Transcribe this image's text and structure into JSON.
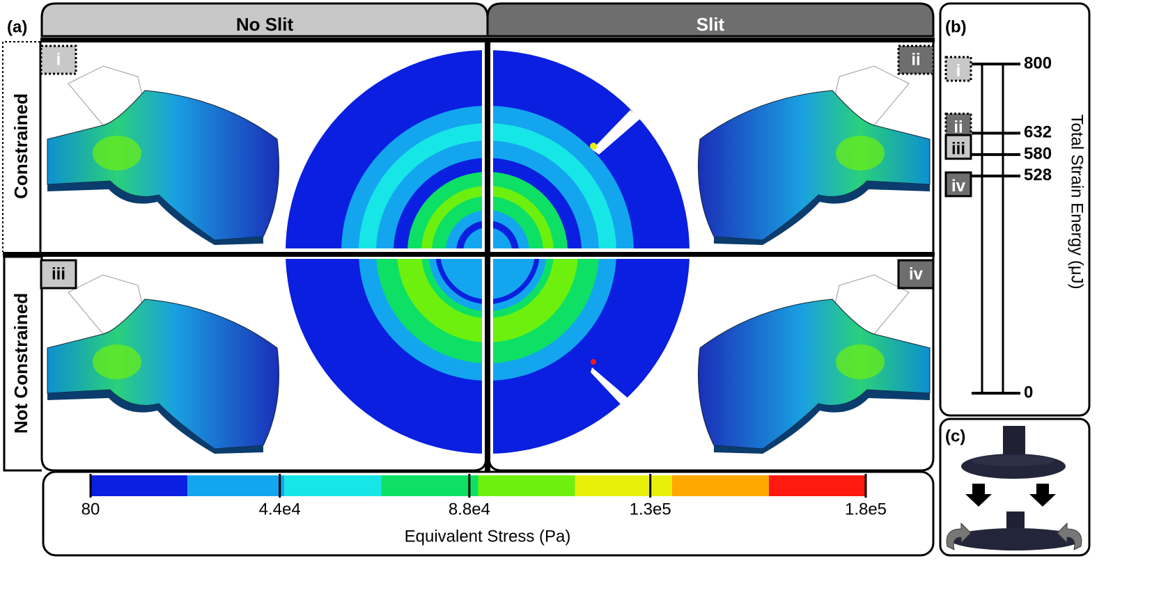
{
  "figure": {
    "panel_a": {
      "label": "(a)",
      "columns": [
        "No Slit",
        "Slit"
      ],
      "rows": [
        "Constrained",
        "Not Constrained"
      ],
      "cases": [
        "i",
        "ii",
        "iii",
        "iv"
      ]
    },
    "colorbar": {
      "title": "Equivalent Stress (Pa)",
      "lim": [
        80,
        180000
      ],
      "colors": [
        "#0a1fe0",
        "#13a6ee",
        "#17e6e6",
        "#0de064",
        "#6ef00e",
        "#e8f00a",
        "#ffa800",
        "#ff1a10"
      ],
      "ticks": [
        {
          "value": 80,
          "label": "80"
        },
        {
          "value": 44000,
          "label": "4.4e4"
        },
        {
          "value": 88000,
          "label": "8.8e4"
        },
        {
          "value": 130000,
          "label": "1.3e5"
        },
        {
          "value": 180000,
          "label": "1.8e5"
        }
      ]
    },
    "panel_b": {
      "label": "(b)",
      "axis_title": "Total Strain Energy (μJ)",
      "ylim": [
        0,
        800
      ],
      "ticks": [
        800,
        632,
        580,
        528,
        0
      ],
      "case_values": [
        800,
        632,
        580,
        528
      ]
    },
    "panel_c": {
      "label": "(c)"
    }
  }
}
